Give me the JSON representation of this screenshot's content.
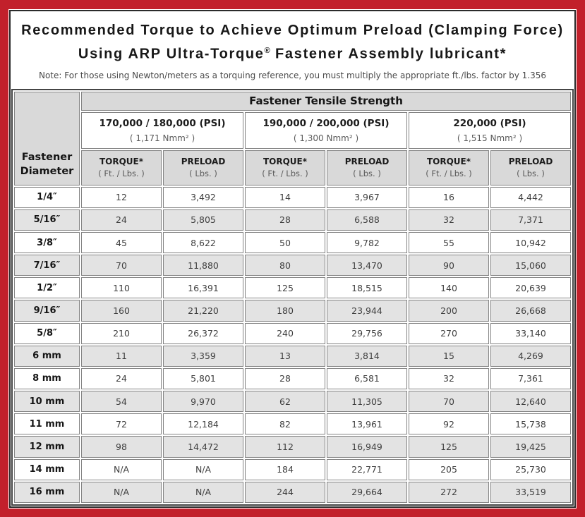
{
  "colors": {
    "frame_red": "#C2202B",
    "frame_line": "#2B2B2B",
    "header_gray": "#D9D9D9",
    "row_gray": "#E3E3E3",
    "cell_border": "#848484"
  },
  "title": {
    "line1": "Recommended Torque to Achieve Optimum Preload (Clamping Force)",
    "line2_prefix": "Using ARP Ultra-Torque",
    "line2_reg": "®",
    "line2_suffix": " Fastener Assembly lubricant*"
  },
  "note": "Note: For those using Newton/meters as a torquing reference, you must multiply the appropriate ft./lbs. factor by 1.356",
  "table": {
    "corner": {
      "line1": "Fastener",
      "line2": "Diameter"
    },
    "main_header": "Fastener Tensile Strength",
    "groups": [
      {
        "psi": "170,000 / 180,000 (PSI)",
        "nmm": "( 1,171 Nmm² )"
      },
      {
        "psi": "190,000 / 200,000 (PSI)",
        "nmm": "( 1,300 Nmm² )"
      },
      {
        "psi": "220,000 (PSI)",
        "nmm": "( 1,515 Nmm² )"
      }
    ],
    "subheaders": {
      "torque_label": "TORQUE*",
      "torque_unit": "( Ft. / Lbs. )",
      "preload_label": "PRELOAD",
      "preload_unit": "( Lbs. )"
    },
    "rows": [
      {
        "diameter": "1/4″",
        "values": [
          "12",
          "3,492",
          "14",
          "3,967",
          "16",
          "4,442"
        ]
      },
      {
        "diameter": "5/16″",
        "values": [
          "24",
          "5,805",
          "28",
          "6,588",
          "32",
          "7,371"
        ]
      },
      {
        "diameter": "3/8″",
        "values": [
          "45",
          "8,622",
          "50",
          "9,782",
          "55",
          "10,942"
        ]
      },
      {
        "diameter": "7/16″",
        "values": [
          "70",
          "11,880",
          "80",
          "13,470",
          "90",
          "15,060"
        ]
      },
      {
        "diameter": "1/2″",
        "values": [
          "110",
          "16,391",
          "125",
          "18,515",
          "140",
          "20,639"
        ]
      },
      {
        "diameter": "9/16″",
        "values": [
          "160",
          "21,220",
          "180",
          "23,944",
          "200",
          "26,668"
        ]
      },
      {
        "diameter": "5/8″",
        "values": [
          "210",
          "26,372",
          "240",
          "29,756",
          "270",
          "33,140"
        ]
      },
      {
        "diameter": "6 mm",
        "values": [
          "11",
          "3,359",
          "13",
          "3,814",
          "15",
          "4,269"
        ]
      },
      {
        "diameter": "8 mm",
        "values": [
          "24",
          "5,801",
          "28",
          "6,581",
          "32",
          "7,361"
        ]
      },
      {
        "diameter": "10 mm",
        "values": [
          "54",
          "9,970",
          "62",
          "11,305",
          "70",
          "12,640"
        ]
      },
      {
        "diameter": "11 mm",
        "values": [
          "72",
          "12,184",
          "82",
          "13,961",
          "92",
          "15,738"
        ]
      },
      {
        "diameter": "12 mm",
        "values": [
          "98",
          "14,472",
          "112",
          "16,949",
          "125",
          "19,425"
        ]
      },
      {
        "diameter": "14 mm",
        "values": [
          "N/A",
          "N/A",
          "184",
          "22,771",
          "205",
          "25,730"
        ]
      },
      {
        "diameter": "16 mm",
        "values": [
          "N/A",
          "N/A",
          "244",
          "29,664",
          "272",
          "33,519"
        ]
      }
    ]
  }
}
